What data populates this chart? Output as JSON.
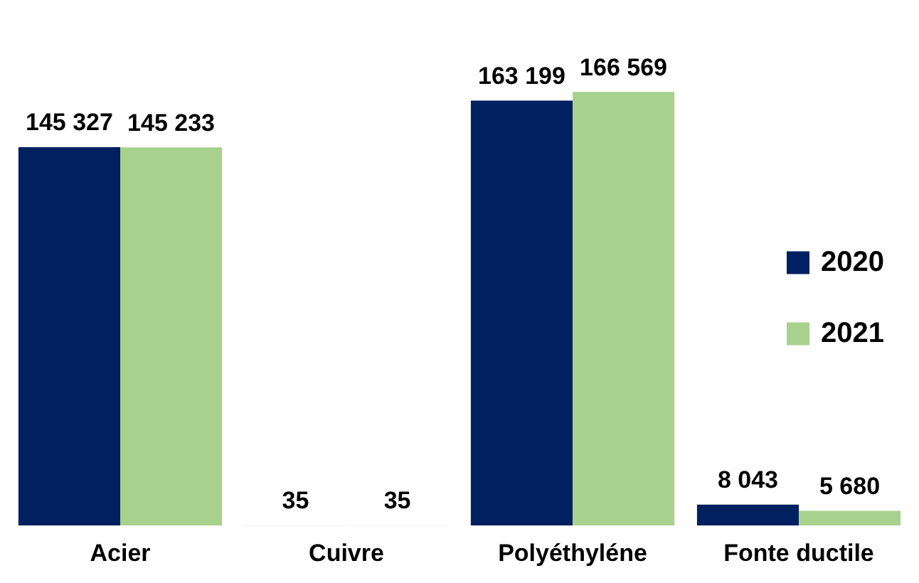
{
  "chart_data": {
    "type": "bar",
    "categories": [
      "Acier",
      "Cuivre",
      "Polyéthyléne",
      "Fonte ductile"
    ],
    "series": [
      {
        "name": "2020",
        "color": "#002060",
        "values": [
          145327,
          35,
          163199,
          8043
        ],
        "value_labels": [
          "145 327",
          "35",
          "163 199",
          "8 043"
        ]
      },
      {
        "name": "2021",
        "color": "#a9d18e",
        "values": [
          145233,
          35,
          166569,
          5680
        ],
        "value_labels": [
          "145 233",
          "35",
          "166 569",
          "5 680"
        ]
      }
    ],
    "legend": "right",
    "grid": false
  }
}
